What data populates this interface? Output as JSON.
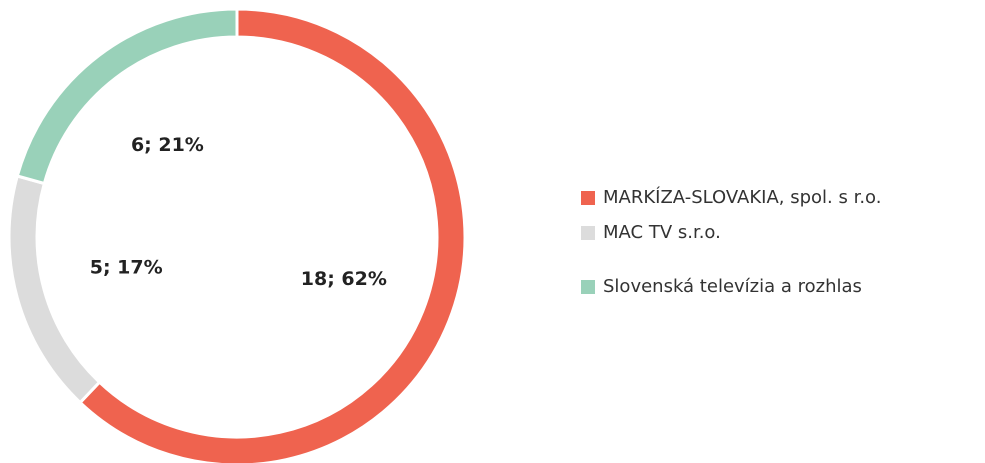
{
  "chart_data": {
    "type": "donut",
    "categories": [
      "MARKÍZA-SLOVAKIA, spol. s r.o.",
      "MAC TV s.r.o.",
      "Slovenská televízia a rozhlas"
    ],
    "values": [
      18,
      5,
      6
    ],
    "value_labels": [
      "18; 62%",
      "5; 17%",
      "6; 21%"
    ],
    "colors": [
      "#ef634f",
      "#dcdcdc",
      "#99d1b9"
    ],
    "legend": "right"
  }
}
